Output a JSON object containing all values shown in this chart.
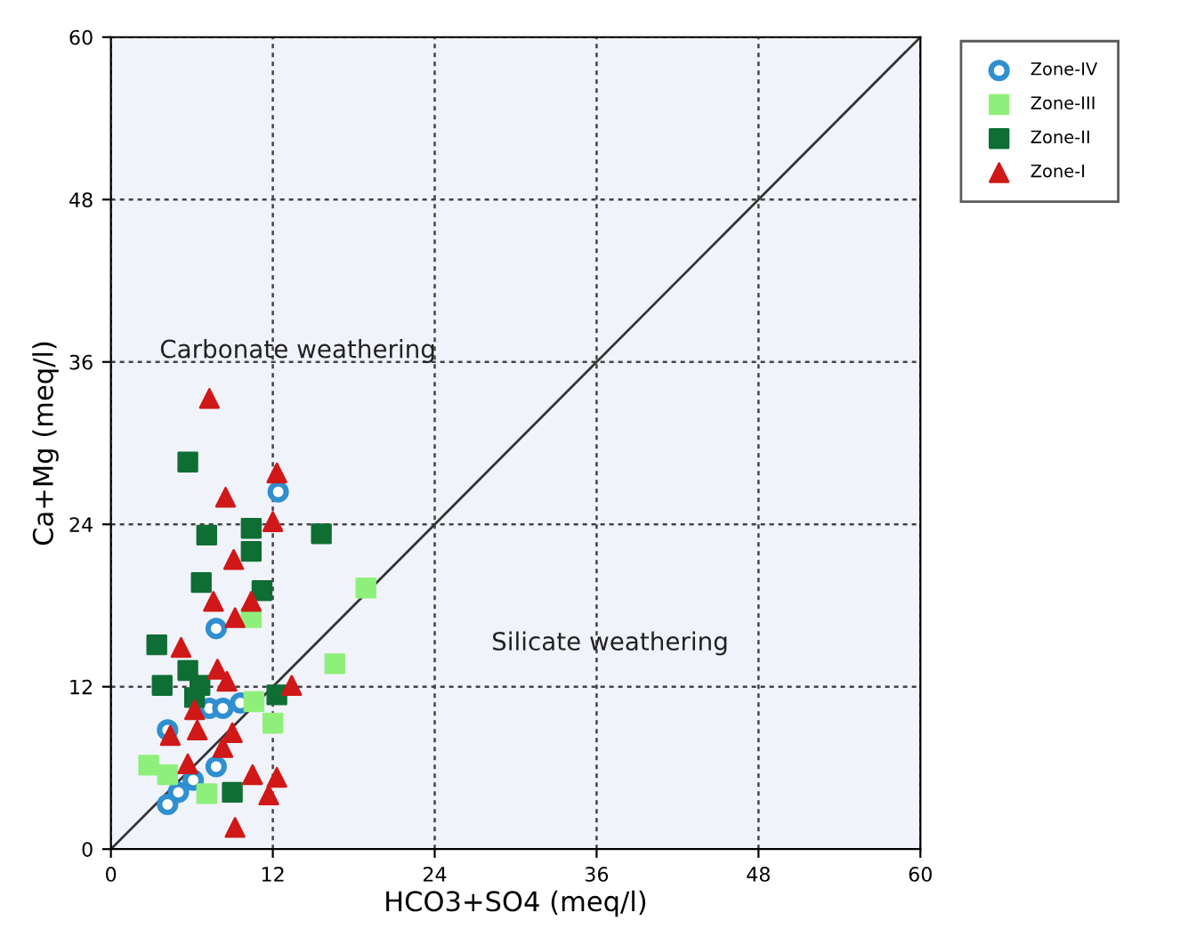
{
  "chart_data": {
    "type": "scatter",
    "xlabel": "HCO3+SO4 (meq/l)",
    "ylabel": "Ca+Mg (meq/l)",
    "xlim": [
      0,
      60
    ],
    "ylim": [
      0,
      60
    ],
    "xticks": [
      0,
      12,
      24,
      36,
      48,
      60
    ],
    "yticks": [
      0,
      12,
      24,
      36,
      48,
      60
    ],
    "grid": true,
    "legend": "top right",
    "annotations": [
      "Carbonate weathering",
      "Silicate weathering"
    ],
    "series": [
      {
        "name": "Zone-IV",
        "color": "#2f8fd0",
        "marker": "circle",
        "x": [
          12.4,
          7.8,
          4.2,
          7.3,
          8.3,
          9.6,
          7.8,
          6.1,
          5.0,
          4.2
        ],
        "values": [
          26.4,
          16.3,
          8.8,
          10.4,
          10.4,
          10.8,
          6.1,
          5.1,
          4.2,
          3.3
        ]
      },
      {
        "name": "Zone-III",
        "color": "#8ef07a",
        "marker": "square",
        "x": [
          18.9,
          16.6,
          10.4,
          12.0,
          2.8,
          7.1,
          10.6,
          4.2
        ],
        "values": [
          19.3,
          13.7,
          17.1,
          9.3,
          6.2,
          4.1,
          10.9,
          5.5
        ]
      },
      {
        "name": "Zone-II",
        "color": "#0e6e34",
        "marker": "square",
        "x": [
          5.7,
          7.1,
          10.4,
          15.6,
          10.4,
          6.7,
          11.2,
          3.4,
          5.7,
          3.8,
          6.6,
          6.2,
          12.3,
          9.0
        ],
        "values": [
          28.6,
          23.2,
          23.7,
          23.3,
          22.0,
          19.7,
          19.1,
          15.1,
          13.2,
          12.1,
          12.1,
          11.2,
          11.4,
          4.2
        ]
      },
      {
        "name": "Zone-I",
        "color": "#d01818",
        "marker": "triangle",
        "x": [
          7.3,
          12.3,
          8.5,
          12.0,
          9.1,
          7.6,
          10.4,
          9.2,
          5.2,
          7.9,
          8.6,
          13.4,
          6.2,
          6.4,
          9.0,
          4.4,
          8.3,
          5.7,
          10.5,
          12.3,
          11.7,
          9.2
        ],
        "values": [
          33.3,
          27.8,
          26.0,
          24.2,
          21.4,
          18.3,
          18.3,
          17.1,
          14.9,
          13.3,
          12.4,
          12.1,
          10.3,
          8.8,
          8.6,
          8.4,
          7.5,
          6.3,
          5.5,
          5.3,
          4.0,
          1.6
        ]
      },
      {
        "type": "line",
        "color": "#333333",
        "x": [
          0,
          60
        ],
        "values": [
          0,
          60
        ]
      }
    ]
  }
}
